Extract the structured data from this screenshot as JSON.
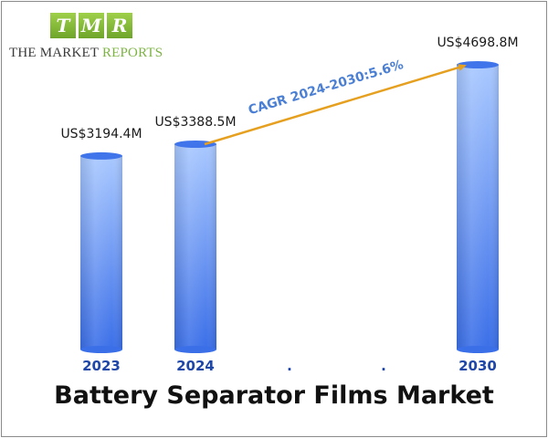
{
  "logo": {
    "letters": [
      "T",
      "M",
      "R"
    ],
    "line1": "THE MARKET",
    "line2": "REPORTS"
  },
  "chart_data": {
    "type": "bar",
    "title": "Battery Separator Films Market",
    "categories": [
      "2023",
      "2024",
      ".",
      ".",
      "2030"
    ],
    "values": [
      3194.4,
      3388.5,
      null,
      null,
      4698.8
    ],
    "value_labels": [
      "US$3194.4M",
      "US$3388.5M",
      "",
      "",
      "US$4698.8M"
    ],
    "annotation": "CAGR 2024-2030:5.6%",
    "colors": {
      "bar_top": "#a9c8ff",
      "bar_bottom": "#3b6fe8",
      "bar_cap": "#3f74ea",
      "category_label": "#1f47a8",
      "arrow": "#e6a020",
      "annotation": "#4a7fd4"
    }
  }
}
